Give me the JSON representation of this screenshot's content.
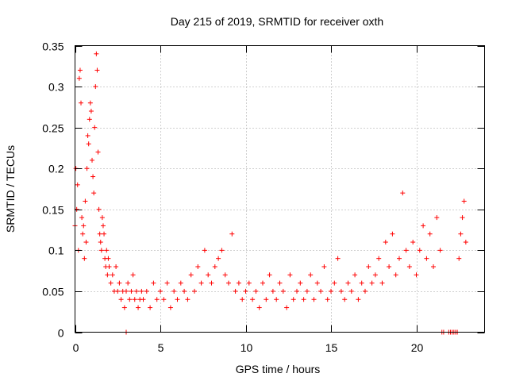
{
  "chart_data": {
    "type": "scatter",
    "title": "Day 215 of 2019, SRMTID for receiver oxth",
    "xlabel": "GPS time / hours",
    "ylabel": "SRMTID / TECUs",
    "xlim": [
      0,
      24
    ],
    "ylim": [
      0,
      0.35
    ],
    "x_ticks": [
      0,
      5,
      10,
      15,
      20
    ],
    "x_tick_labels": [
      "0",
      "5",
      "10",
      "15",
      "20"
    ],
    "y_ticks": [
      0,
      0.05,
      0.1,
      0.15,
      0.2,
      0.25,
      0.3,
      0.35
    ],
    "y_tick_labels": [
      "0",
      "0.05",
      "0.1",
      "0.15",
      "0.2",
      "0.25",
      "0.3",
      "0.35"
    ],
    "grid": true,
    "marker": "plus",
    "color": "#ff0000",
    "series": [
      {
        "name": "SRMTID",
        "x": [
          0.0,
          0.05,
          0.1,
          0.15,
          0.2,
          0.25,
          0.3,
          0.35,
          0.4,
          0.45,
          0.5,
          0.55,
          0.6,
          0.65,
          0.7,
          0.75,
          0.8,
          0.85,
          0.9,
          0.95,
          1.0,
          1.05,
          1.1,
          1.15,
          1.2,
          1.25,
          1.3,
          1.35,
          1.4,
          1.45,
          1.5,
          1.55,
          1.6,
          1.65,
          1.7,
          1.75,
          1.8,
          1.85,
          1.9,
          1.95,
          2.0,
          2.1,
          2.2,
          2.3,
          2.4,
          2.5,
          2.6,
          2.7,
          2.8,
          2.9,
          3.0,
          3.1,
          3.2,
          3.3,
          3.4,
          3.5,
          3.6,
          3.7,
          3.8,
          3.9,
          4.0,
          4.2,
          4.4,
          4.6,
          4.8,
          5.0,
          5.2,
          5.4,
          5.6,
          5.8,
          6.0,
          6.2,
          6.4,
          6.6,
          6.8,
          7.0,
          7.2,
          7.4,
          7.6,
          7.8,
          8.0,
          8.2,
          8.4,
          8.6,
          8.8,
          9.0,
          9.2,
          9.4,
          9.6,
          9.8,
          10.0,
          10.2,
          10.4,
          10.6,
          10.8,
          11.0,
          11.2,
          11.4,
          11.6,
          11.8,
          12.0,
          12.2,
          12.4,
          12.6,
          12.8,
          13.0,
          13.2,
          13.4,
          13.6,
          13.8,
          14.0,
          14.2,
          14.4,
          14.6,
          14.8,
          15.0,
          15.2,
          15.4,
          15.6,
          15.8,
          16.0,
          16.2,
          16.4,
          16.6,
          16.8,
          17.0,
          17.2,
          17.4,
          17.6,
          17.8,
          18.0,
          18.2,
          18.4,
          18.6,
          18.8,
          19.0,
          19.2,
          19.4,
          19.6,
          19.8,
          20.0,
          20.2,
          20.4,
          20.6,
          20.8,
          21.0,
          21.2,
          21.4,
          22.5,
          22.6,
          22.7,
          22.8,
          22.9
        ],
        "y": [
          0.13,
          0.2,
          0.15,
          0.18,
          0.1,
          0.31,
          0.32,
          0.28,
          0.14,
          0.12,
          0.13,
          0.09,
          0.16,
          0.11,
          0.2,
          0.24,
          0.23,
          0.26,
          0.28,
          0.27,
          0.21,
          0.19,
          0.17,
          0.25,
          0.3,
          0.34,
          0.32,
          0.22,
          0.15,
          0.12,
          0.11,
          0.1,
          0.14,
          0.13,
          0.12,
          0.09,
          0.08,
          0.1,
          0.07,
          0.09,
          0.08,
          0.06,
          0.07,
          0.05,
          0.08,
          0.05,
          0.06,
          0.04,
          0.05,
          0.03,
          0.05,
          0.06,
          0.04,
          0.05,
          0.07,
          0.04,
          0.05,
          0.03,
          0.04,
          0.05,
          0.04,
          0.05,
          0.03,
          0.06,
          0.04,
          0.05,
          0.04,
          0.06,
          0.03,
          0.05,
          0.04,
          0.06,
          0.05,
          0.04,
          0.07,
          0.05,
          0.08,
          0.06,
          0.1,
          0.07,
          0.06,
          0.08,
          0.09,
          0.1,
          0.07,
          0.06,
          0.12,
          0.05,
          0.06,
          0.04,
          0.05,
          0.06,
          0.04,
          0.05,
          0.03,
          0.06,
          0.04,
          0.07,
          0.05,
          0.04,
          0.06,
          0.05,
          0.03,
          0.07,
          0.04,
          0.05,
          0.06,
          0.04,
          0.05,
          0.07,
          0.04,
          0.06,
          0.05,
          0.08,
          0.04,
          0.05,
          0.06,
          0.09,
          0.05,
          0.04,
          0.06,
          0.05,
          0.07,
          0.04,
          0.06,
          0.05,
          0.08,
          0.06,
          0.07,
          0.09,
          0.06,
          0.11,
          0.08,
          0.12,
          0.07,
          0.09,
          0.17,
          0.1,
          0.08,
          0.11,
          0.07,
          0.1,
          0.13,
          0.09,
          0.12,
          0.08,
          0.14,
          0.1,
          0.09,
          0.12,
          0.14,
          0.16,
          0.11
        ],
        "zero_x": [
          3.0,
          21.5,
          21.6,
          21.9,
          22.0,
          22.1,
          22.2,
          22.3,
          22.4
        ]
      }
    ]
  }
}
